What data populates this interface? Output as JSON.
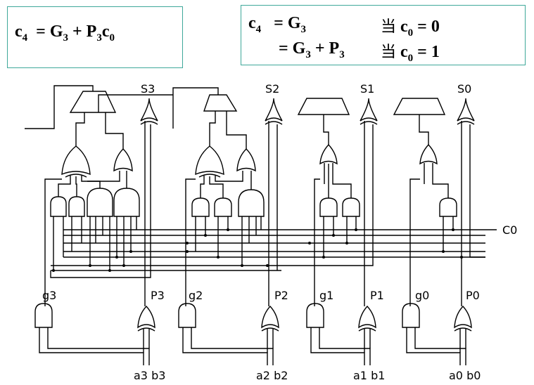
{
  "formula_left": {
    "lhs": "c",
    "lhs_sub": "4",
    "expr_a": "= G",
    "expr_a_sub": "3",
    "expr_b": " + P",
    "expr_b_sub": "3",
    "expr_c": "c",
    "expr_c_sub": "0"
  },
  "formula_right": {
    "line1": {
      "lhs": "c",
      "lhs_sub": "4",
      "eq": "= G",
      "eq_sub": "3",
      "cond_word": "当",
      "cond_var": "c",
      "cond_sub": "0",
      "cond_val": " = 0"
    },
    "line2": {
      "eq": "= G",
      "eq_sub": "3",
      "plus": " + P",
      "plus_sub": "3",
      "cond_word": "当",
      "cond_var": "c",
      "cond_sub": "0",
      "cond_val": " = 1"
    }
  },
  "labels": {
    "s3": "S3",
    "s2": "S2",
    "s1": "S1",
    "s0": "S0",
    "g3": "g3",
    "p3": "P3",
    "g2": "g2",
    "p2": "P2",
    "g1": "g1",
    "p1": "P1",
    "g0": "g0",
    "p0": "P0",
    "a3b3": "a3 b3",
    "a2b2": "a2 b2",
    "a1b1": "a1 b1",
    "a0b0": "a0 b0",
    "c0": "C0"
  }
}
